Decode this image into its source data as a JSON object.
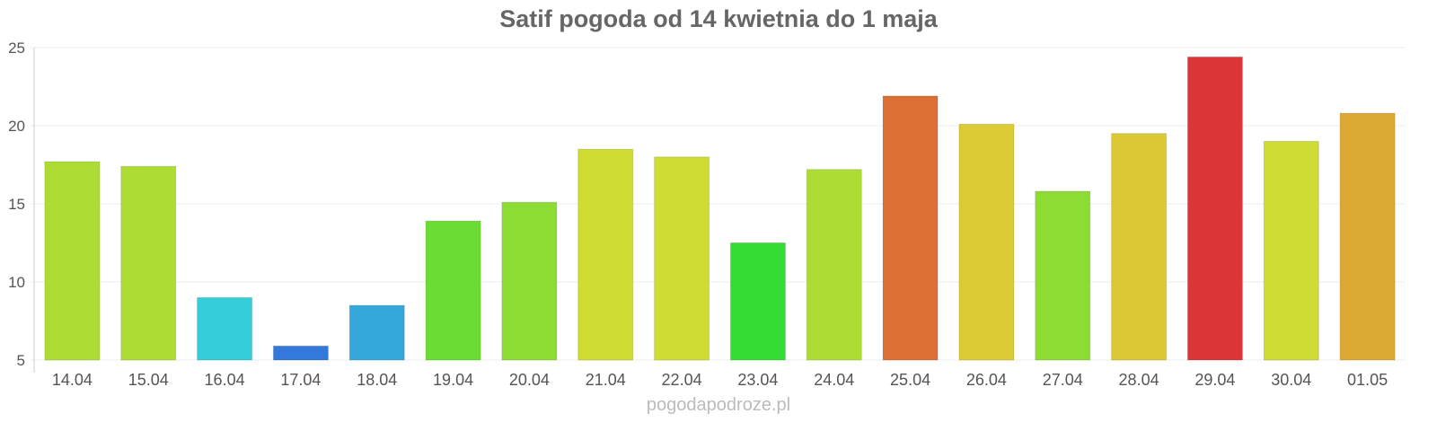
{
  "chart_data": {
    "type": "bar",
    "title": "Satif pogoda od 14 kwietnia do 1 maja",
    "xlabel": "",
    "ylabel": "",
    "ylim": [
      5,
      25
    ],
    "yticks": [
      5,
      10,
      15,
      20,
      25
    ],
    "grid": true,
    "categories": [
      "14.04",
      "15.04",
      "16.04",
      "17.04",
      "18.04",
      "19.04",
      "20.04",
      "21.04",
      "22.04",
      "23.04",
      "24.04",
      "25.04",
      "26.04",
      "27.04",
      "28.04",
      "29.04",
      "30.04",
      "01.05"
    ],
    "values": [
      17.7,
      17.4,
      9.0,
      5.9,
      8.5,
      13.9,
      15.1,
      18.5,
      18.0,
      12.5,
      17.2,
      21.9,
      20.1,
      15.8,
      19.5,
      24.4,
      19.0,
      20.8
    ],
    "colors": [
      "#addd34",
      "#addd34",
      "#34cdd9",
      "#3578db",
      "#35a8db",
      "#6adc34",
      "#8cdc34",
      "#cedc34",
      "#cedc34",
      "#34dc34",
      "#addd34",
      "#dc6f34",
      "#dccb34",
      "#8cdc34",
      "#dcc834",
      "#db3535",
      "#cedc34",
      "#dca834"
    ]
  },
  "footer": "pogodapodroze.pl"
}
